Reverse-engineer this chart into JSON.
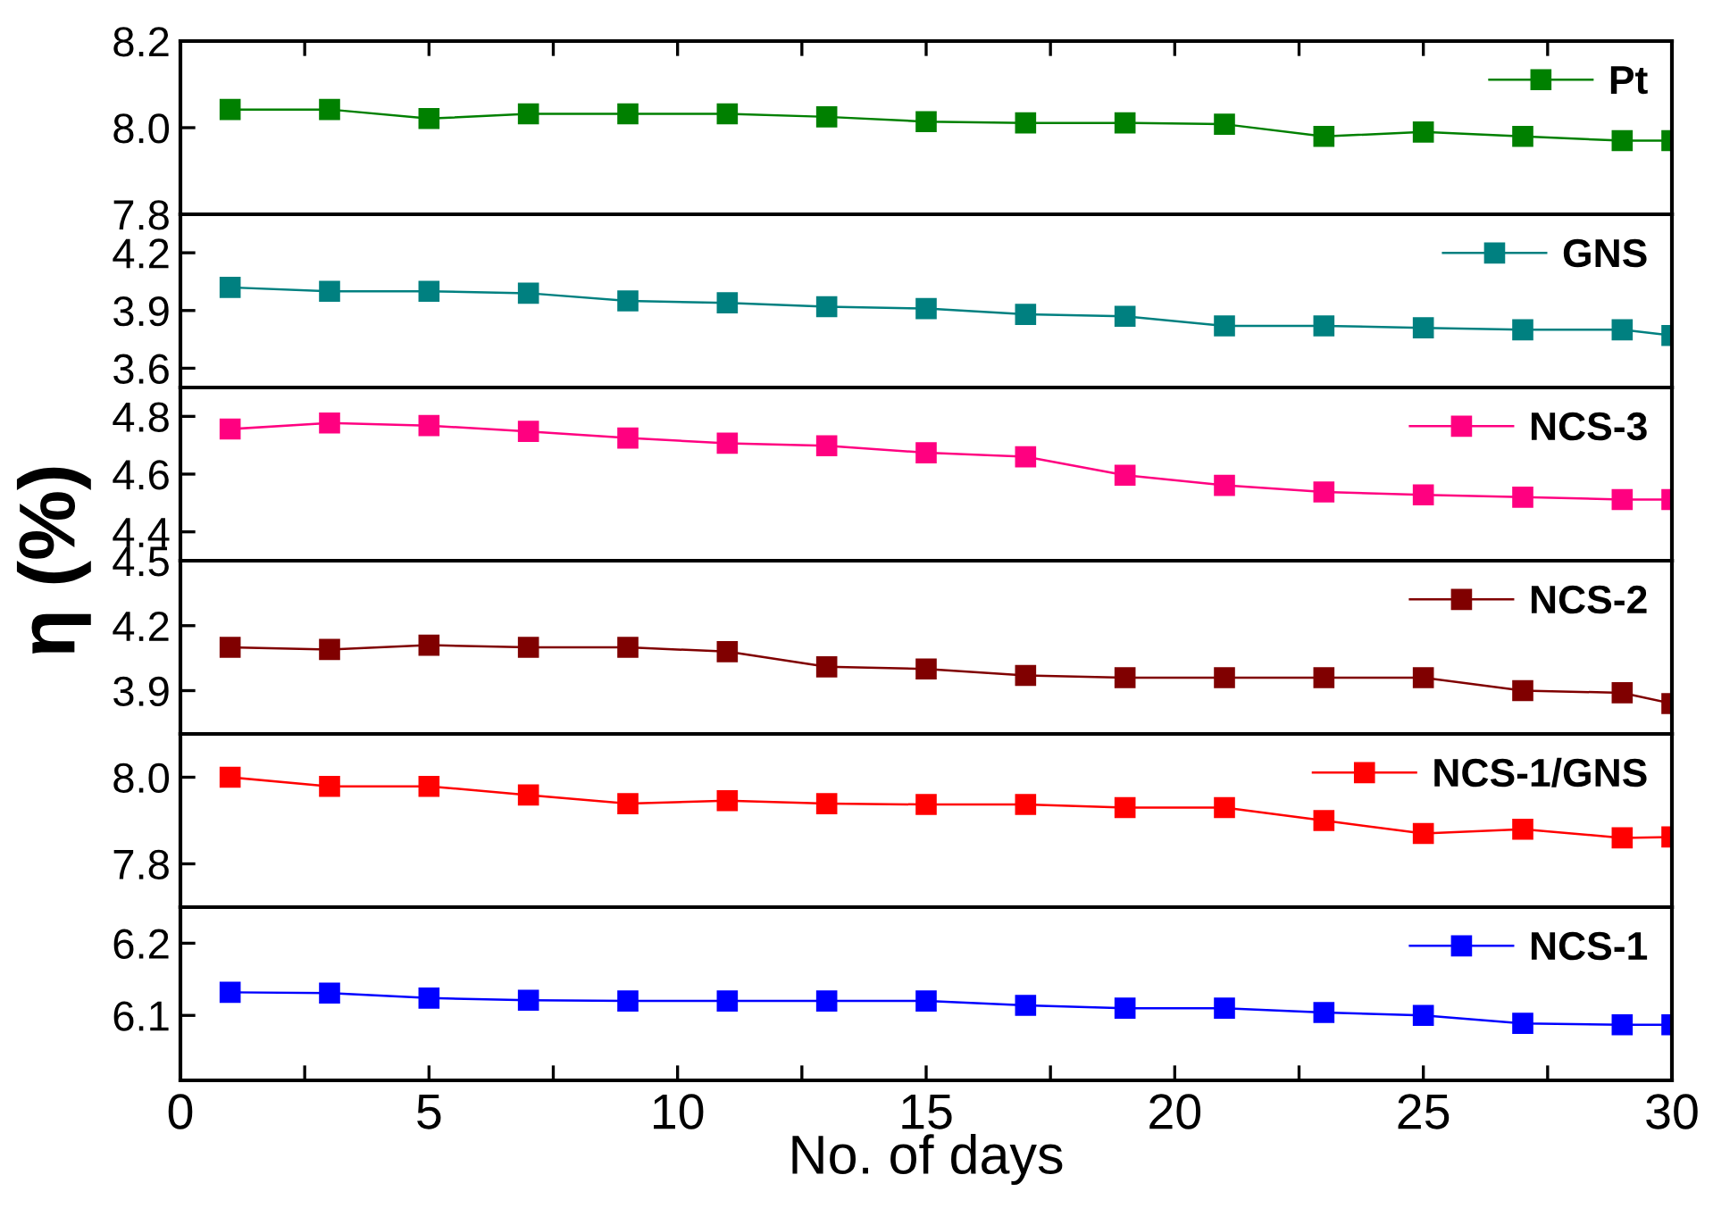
{
  "chart_data": [
    {
      "type": "line",
      "x": [
        1,
        3,
        5,
        7,
        9,
        11,
        13,
        15,
        17,
        19,
        21,
        23,
        25,
        27,
        29,
        30
      ],
      "xlim": [
        0,
        30
      ],
      "xticks": [
        {
          "value": 0,
          "label": null
        },
        {
          "value": 2.5,
          "label": null
        },
        {
          "value": 5,
          "label": null
        },
        {
          "value": 7.5,
          "label": null
        },
        {
          "value": 10,
          "label": null
        },
        {
          "value": 12.5,
          "label": null
        },
        {
          "value": 15,
          "label": null
        },
        {
          "value": 17.5,
          "label": null
        },
        {
          "value": 20,
          "label": null
        },
        {
          "value": 22.5,
          "label": null
        },
        {
          "value": 25,
          "label": null
        },
        {
          "value": 27.5,
          "label": null
        },
        {
          "value": 30,
          "label": null
        }
      ],
      "ylim": [
        7.8,
        8.2
      ],
      "yticks": [
        7.8,
        {
          "value": 8.0,
          "label": "8.0"
        },
        8.2
      ],
      "tick_labels": "y",
      "legend": "top right",
      "marker": "square",
      "line_style": "solid",
      "grid": false,
      "series": [
        {
          "name": "Pt",
          "color": "#008000",
          "values": [
            8.042,
            8.042,
            8.021,
            8.032,
            8.032,
            8.032,
            8.025,
            8.014,
            8.011,
            8.011,
            8.008,
            7.98,
            7.99,
            7.98,
            7.97,
            7.97
          ]
        }
      ]
    },
    {
      "type": "line",
      "x": [
        1,
        3,
        5,
        7,
        9,
        11,
        13,
        15,
        17,
        19,
        21,
        23,
        25,
        27,
        29,
        30
      ],
      "xlim": [
        0,
        30
      ],
      "ylim": [
        3.5,
        4.4
      ],
      "yticks": [
        3.6,
        3.9,
        4.2
      ],
      "tick_labels": "y",
      "legend": "top right",
      "marker": "square",
      "line_style": "solid",
      "grid": false,
      "series": [
        {
          "name": "GNS",
          "color": "#008080",
          "values": [
            4.02,
            4.0,
            4.0,
            3.99,
            3.95,
            3.94,
            3.92,
            3.91,
            3.88,
            3.87,
            3.82,
            3.82,
            3.81,
            3.8,
            3.8,
            3.77
          ]
        }
      ]
    },
    {
      "type": "line",
      "x": [
        1,
        3,
        5,
        7,
        9,
        11,
        13,
        15,
        17,
        19,
        21,
        23,
        25,
        27,
        29,
        30
      ],
      "xlim": [
        0,
        30
      ],
      "ylim": [
        4.3,
        4.9
      ],
      "yticks": [
        4.4,
        4.6,
        4.8
      ],
      "tick_labels": "y",
      "legend": "top right",
      "marker": "square",
      "line_style": "solid",
      "grid": false,
      "ylabel": "η (%)",
      "series": [
        {
          "name": "NCS-3",
          "color": "#ff0080",
          "values": [
            4.756,
            4.777,
            4.768,
            4.748,
            4.725,
            4.707,
            4.698,
            4.674,
            4.66,
            4.596,
            4.561,
            4.538,
            4.528,
            4.52,
            4.512,
            4.512
          ]
        }
      ]
    },
    {
      "type": "line",
      "x": [
        1,
        3,
        5,
        7,
        9,
        11,
        13,
        15,
        17,
        19,
        21,
        23,
        25,
        27,
        29,
        30
      ],
      "xlim": [
        0,
        30
      ],
      "ylim": [
        3.7,
        4.5
      ],
      "yticks": [
        3.9,
        4.2,
        4.5
      ],
      "tick_labels": "y",
      "legend": "top right",
      "marker": "square",
      "line_style": "solid",
      "grid": false,
      "series": [
        {
          "name": "NCS-2",
          "color": "#800000",
          "values": [
            4.1,
            4.09,
            4.11,
            4.1,
            4.1,
            4.08,
            4.01,
            4.0,
            3.97,
            3.96,
            3.96,
            3.96,
            3.96,
            3.9,
            3.89,
            3.84
          ]
        }
      ]
    },
    {
      "type": "line",
      "x": [
        1,
        3,
        5,
        7,
        9,
        11,
        13,
        15,
        17,
        19,
        21,
        23,
        25,
        27,
        29,
        30
      ],
      "xlim": [
        0,
        30
      ],
      "ylim": [
        7.7,
        8.1
      ],
      "yticks": [
        7.8,
        {
          "value": 8.0,
          "label": "8.0"
        }
      ],
      "tick_labels": "y",
      "legend": "top right",
      "marker": "square",
      "line_style": "solid",
      "grid": false,
      "series": [
        {
          "name": "NCS-1/GNS",
          "color": "#ff0000",
          "values": [
            8.0,
            7.979,
            7.979,
            7.959,
            7.939,
            7.946,
            7.939,
            7.937,
            7.937,
            7.93,
            7.93,
            7.9,
            7.87,
            7.88,
            7.86,
            7.862
          ]
        }
      ]
    },
    {
      "type": "line",
      "x": [
        1,
        3,
        5,
        7,
        9,
        11,
        13,
        15,
        17,
        19,
        21,
        23,
        25,
        27,
        29,
        30
      ],
      "xlim": [
        0,
        30
      ],
      "xticks": [
        0,
        {
          "value": 2.5,
          "label": null
        },
        5,
        {
          "value": 7.5,
          "label": null
        },
        10,
        {
          "value": 12.5,
          "label": null
        },
        15,
        {
          "value": 17.5,
          "label": null
        },
        20,
        {
          "value": 22.5,
          "label": null
        },
        25,
        {
          "value": 27.5,
          "label": null
        },
        30
      ],
      "ylim": [
        6.01,
        6.25
      ],
      "yticks": [
        6.1,
        6.2
      ],
      "legend": "top right",
      "marker": "square",
      "line_style": "solid",
      "grid": false,
      "xlabel": "No. of days",
      "series": [
        {
          "name": "NCS-1",
          "color": "#0000ff",
          "values": [
            6.132,
            6.131,
            6.124,
            6.121,
            6.12,
            6.12,
            6.12,
            6.12,
            6.114,
            6.11,
            6.11,
            6.104,
            6.1,
            6.089,
            6.087,
            6.087
          ]
        }
      ]
    }
  ]
}
